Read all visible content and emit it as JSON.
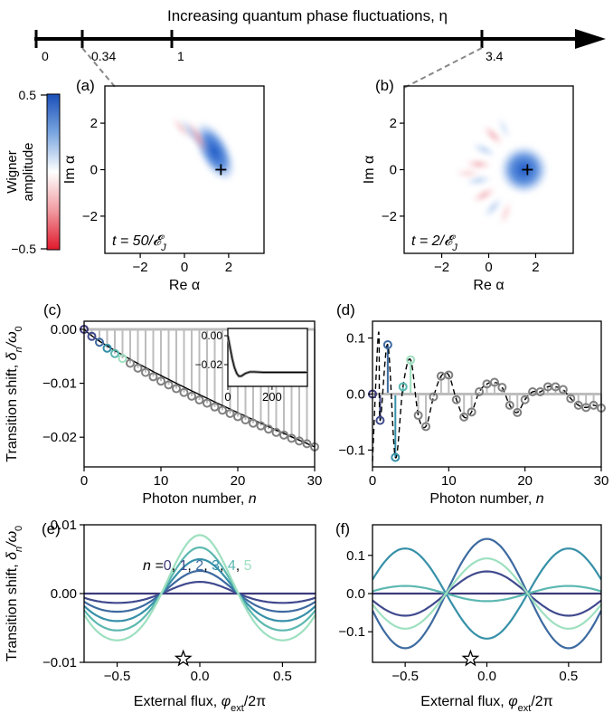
{
  "colors": {
    "n0": "#3d3a7a",
    "n1": "#404a8e",
    "n2": "#3d6aa0",
    "n3": "#3690a8",
    "n4": "#5cb8b0",
    "n5": "#9ee0c0",
    "gray_marker": "#808080",
    "stem": "#bdbdbd",
    "blue": "#1f5fc8",
    "red": "#e6273a"
  },
  "header": {
    "title": "Increasing quantum phase fluctuations, η",
    "ticks": [
      "0",
      "0.34",
      "1",
      "3.4"
    ]
  },
  "colorbar": {
    "label_line1": "Wigner",
    "label_line2": "amplitude",
    "max_label": "0.5",
    "min_label": "−0.5"
  },
  "chart_data": [
    {
      "id": "a",
      "panel_label": "(a)",
      "type": "heatmap",
      "description_text": "t = 50/𝓔J",
      "time_label": "t = 50/𝓔",
      "time_sub": "J",
      "xlabel": "Re α",
      "ylabel": "Im α",
      "xticks": [
        "−2",
        "0",
        "2"
      ],
      "yticks": [
        "2",
        "0",
        "−2"
      ],
      "xlim": [
        -3.6,
        3.6
      ],
      "ylim": [
        -3.6,
        3.6
      ],
      "marker": [
        1.65,
        0
      ]
    },
    {
      "id": "b",
      "panel_label": "(b)",
      "type": "heatmap",
      "time_label": "t = 2/𝓔",
      "time_sub": "J",
      "xlabel": "Re α",
      "ylabel": "Im α",
      "xticks": [
        "−2",
        "0",
        "2"
      ],
      "yticks": [
        "2",
        "0",
        "−2"
      ],
      "xlim": [
        -3.6,
        3.6
      ],
      "ylim": [
        -3.6,
        3.6
      ],
      "marker": [
        1.65,
        0
      ]
    },
    {
      "id": "c",
      "panel_label": "(c)",
      "type": "scatter",
      "ylabel": "Transition shift, δn/ω0",
      "xlabel": "Photon number, n",
      "xlim": [
        0,
        30
      ],
      "ylim": [
        -0.0255,
        0.0015
      ],
      "xticks": [
        "0",
        "10",
        "20",
        "30"
      ],
      "yticks": [
        "0.00",
        "−0.01",
        "−0.02"
      ],
      "x": [
        0,
        1,
        2,
        3,
        4,
        5,
        6,
        7,
        8,
        9,
        10,
        11,
        12,
        13,
        14,
        15,
        16,
        17,
        18,
        19,
        20,
        21,
        22,
        23,
        24,
        25,
        26,
        27,
        28,
        29,
        30
      ],
      "y": [
        0,
        -0.0013,
        -0.0024,
        -0.0035,
        -0.0045,
        -0.0054,
        -0.0063,
        -0.0072,
        -0.008,
        -0.0088,
        -0.0096,
        -0.0103,
        -0.011,
        -0.0117,
        -0.0124,
        -0.0131,
        -0.0137,
        -0.0144,
        -0.015,
        -0.0156,
        -0.0162,
        -0.0168,
        -0.0174,
        -0.0179,
        -0.0185,
        -0.0191,
        -0.0196,
        -0.0202,
        -0.0207,
        -0.0212,
        -0.0218
      ],
      "inset": {
        "xlim": [
          0,
          360
        ],
        "ylim": [
          -0.035,
          0.005
        ],
        "xticks": [
          "0",
          "200"
        ],
        "yticks": [
          "0.00",
          "−0.02"
        ],
        "x": [
          0,
          10,
          20,
          30,
          40,
          50,
          60,
          70,
          80,
          90,
          100,
          120,
          140,
          160,
          180,
          200,
          240,
          280,
          320,
          360
        ],
        "y": [
          0,
          -0.008,
          -0.016,
          -0.022,
          -0.026,
          -0.028,
          -0.028,
          -0.027,
          -0.026,
          -0.0255,
          -0.025,
          -0.025,
          -0.0252,
          -0.0253,
          -0.0253,
          -0.0253,
          -0.0253,
          -0.0253,
          -0.0253,
          -0.0253
        ]
      }
    },
    {
      "id": "d",
      "panel_label": "(d)",
      "type": "scatter",
      "xlabel": "Photon number, n",
      "xlim": [
        0,
        30
      ],
      "ylim": [
        -0.13,
        0.13
      ],
      "xticks": [
        "0",
        "10",
        "20",
        "30"
      ],
      "yticks": [
        "0.1",
        "0.0",
        "−0.1"
      ],
      "x": [
        0,
        1,
        2,
        3,
        4,
        5,
        6,
        7,
        8,
        9,
        10,
        11,
        12,
        13,
        14,
        15,
        16,
        17,
        18,
        19,
        20,
        21,
        22,
        23,
        24,
        25,
        26,
        27,
        28,
        29,
        30
      ],
      "y": [
        0,
        -0.047,
        0.088,
        -0.113,
        0.013,
        0.061,
        -0.038,
        -0.058,
        -0.005,
        0.032,
        0.034,
        -0.01,
        -0.041,
        -0.032,
        0.004,
        0.018,
        0.021,
        0.012,
        -0.02,
        -0.033,
        -0.01,
        0.004,
        0.004,
        0.013,
        0.013,
        0.008,
        -0.008,
        -0.02,
        -0.024,
        -0.02,
        -0.025
      ]
    },
    {
      "id": "e",
      "panel_label": "(e)",
      "type": "line",
      "ylabel": "Transition shift, δn/ω0",
      "xlabel": "External flux, φext/2π",
      "xlim": [
        -0.7,
        0.7
      ],
      "ylim": [
        -0.01,
        0.01
      ],
      "xticks": [
        "−0.5",
        "0.0",
        "0.5"
      ],
      "yticks": [
        "0.01",
        "0.00",
        "−0.01"
      ],
      "legend_prefix": "n =",
      "legend_values": [
        "0",
        "1",
        "2",
        "3",
        "4",
        "5"
      ],
      "star_x": -0.1,
      "series": [
        {
          "name": "n=0",
          "amplitude": 0.0
        },
        {
          "name": "n=1",
          "amplitude": 0.0017
        },
        {
          "name": "n=2",
          "amplitude": 0.0033
        },
        {
          "name": "n=3",
          "amplitude": 0.005
        },
        {
          "name": "n=4",
          "amplitude": 0.0067
        },
        {
          "name": "n=5",
          "amplitude": 0.0085
        }
      ]
    },
    {
      "id": "f",
      "panel_label": "(f)",
      "type": "line",
      "xlabel": "External flux, φext/2π",
      "xlim": [
        -0.7,
        0.7
      ],
      "ylim": [
        -0.18,
        0.18
      ],
      "xticks": [
        "−0.5",
        "0.0",
        "0.5"
      ],
      "yticks": [
        "0.1",
        "0.0",
        "−0.1"
      ],
      "star_x": -0.1,
      "series": [
        {
          "name": "n=0",
          "amplitude": 0.0
        },
        {
          "name": "n=1",
          "amplitude": 0.058
        },
        {
          "name": "n=2",
          "amplitude": 0.143
        },
        {
          "name": "n=3",
          "amplitude": -0.118
        },
        {
          "name": "n=4",
          "amplitude": -0.02
        },
        {
          "name": "n=5",
          "amplitude": 0.092
        }
      ]
    }
  ]
}
